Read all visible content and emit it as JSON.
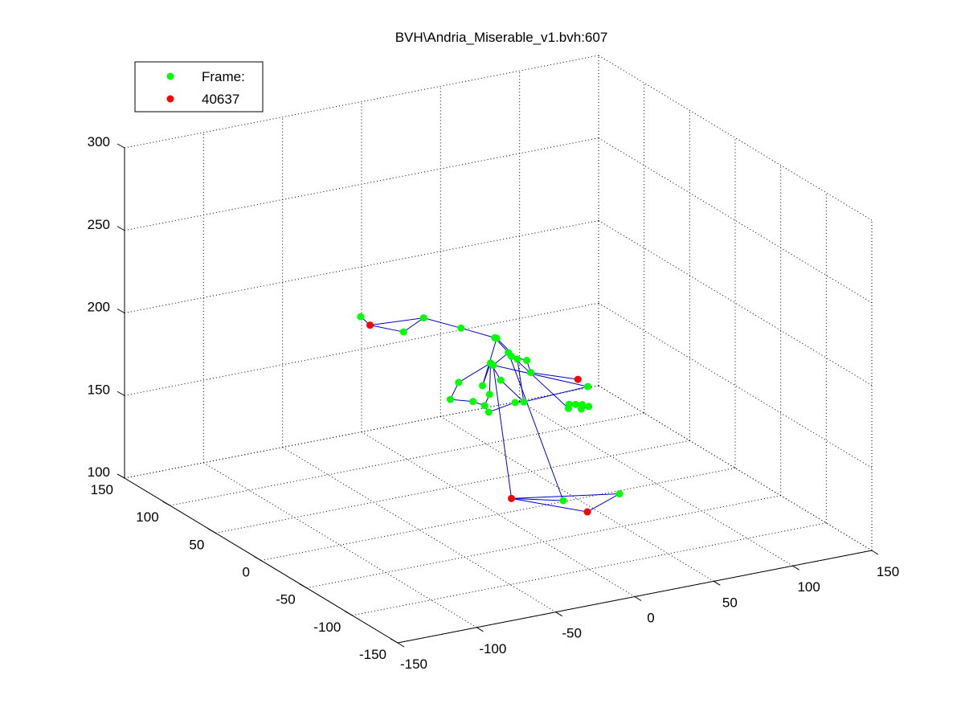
{
  "figure": {
    "background": "#ffffff",
    "title": "BVH\\Andria_Miserable_v1.bvh:607"
  },
  "chart_data": {
    "type": "scatter",
    "projection": "3d",
    "title": "BVH\\Andria_Miserable_v1.bvh:607",
    "xlabel": "",
    "ylabel": "",
    "zlabel": "",
    "grid": true,
    "xlim": [
      -150,
      150
    ],
    "ylim": [
      -150,
      150
    ],
    "zlim": [
      100,
      300
    ],
    "x_ticks": [
      "-150",
      "-100",
      "-50",
      "0",
      "50",
      "100",
      "150"
    ],
    "y_ticks": [
      "-150",
      "-100",
      "-50",
      "0",
      "50",
      "100",
      "150"
    ],
    "z_ticks": [
      "100",
      "150",
      "200",
      "250",
      "300"
    ],
    "legend": {
      "position": "top-left",
      "entries": [
        {
          "label": "Frame:",
          "color": "#00ff00"
        },
        {
          "label": "40637",
          "color": "#ff0000"
        }
      ]
    },
    "colors": {
      "joint": "#00ff00",
      "end_site": "#ff0000",
      "bone": "#0000cc"
    },
    "series": [
      {
        "name": "Frame:",
        "marker": "#00ff00",
        "points": [
          [
            11,
            -9,
            169
          ],
          [
            9,
            -3,
            167
          ],
          [
            -6,
            0,
            163
          ],
          [
            -8,
            1,
            167
          ],
          [
            -2,
            6,
            171
          ],
          [
            5,
            17,
            185
          ],
          [
            12,
            18,
            173
          ],
          [
            -6,
            33,
            170
          ],
          [
            -13,
            30,
            162
          ],
          [
            -9,
            12,
            166
          ],
          [
            12,
            38,
            163
          ],
          [
            25,
            45,
            187
          ],
          [
            30,
            31,
            178
          ],
          [
            36,
            48,
            173
          ],
          [
            44,
            45,
            170
          ],
          [
            35,
            25,
            171
          ],
          [
            59,
            4,
            165
          ],
          [
            32,
            61,
            164
          ],
          [
            48,
            72,
            165
          ],
          [
            48,
            87,
            169
          ],
          [
            33,
            98,
            174
          ],
          [
            18,
            113,
            178
          ],
          [
            -8,
            90,
            182
          ],
          [
            -23,
            111,
            187
          ],
          [
            56,
            20,
            147
          ],
          [
            57,
            21,
            149
          ],
          [
            60,
            19,
            149
          ],
          [
            63,
            17,
            149
          ],
          [
            66,
            15,
            148
          ],
          [
            63,
            18,
            146
          ],
          [
            21,
            -35,
            116
          ],
          [
            52,
            -43,
            117
          ]
        ]
      },
      {
        "name": "40637",
        "marker": "#ff0000",
        "points": [
          [
            43,
            -13,
            178
          ],
          [
            -20,
            106,
            183
          ],
          [
            -6,
            -25,
            119
          ],
          [
            38,
            -32,
            105
          ]
        ]
      }
    ],
    "bones": [
      [
        [
          11,
          -9,
          169
        ],
        [
          9,
          -3,
          167
        ]
      ],
      [
        [
          9,
          -3,
          167
        ],
        [
          -6,
          0,
          163
        ]
      ],
      [
        [
          -6,
          0,
          163
        ],
        [
          -8,
          1,
          167
        ]
      ],
      [
        [
          -8,
          1,
          167
        ],
        [
          -2,
          6,
          171
        ]
      ],
      [
        [
          -2,
          6,
          171
        ],
        [
          5,
          17,
          185
        ]
      ],
      [
        [
          5,
          17,
          185
        ],
        [
          12,
          18,
          173
        ]
      ],
      [
        [
          12,
          18,
          173
        ],
        [
          11,
          -9,
          169
        ]
      ],
      [
        [
          5,
          17,
          185
        ],
        [
          -6,
          33,
          170
        ]
      ],
      [
        [
          -6,
          33,
          170
        ],
        [
          -13,
          30,
          162
        ]
      ],
      [
        [
          -13,
          30,
          162
        ],
        [
          -9,
          12,
          166
        ]
      ],
      [
        [
          -9,
          12,
          166
        ],
        [
          -8,
          1,
          167
        ]
      ],
      [
        [
          5,
          17,
          185
        ],
        [
          12,
          38,
          163
        ]
      ],
      [
        [
          12,
          38,
          163
        ],
        [
          25,
          45,
          187
        ]
      ],
      [
        [
          25,
          45,
          187
        ],
        [
          30,
          31,
          178
        ]
      ],
      [
        [
          30,
          31,
          178
        ],
        [
          36,
          48,
          173
        ]
      ],
      [
        [
          36,
          48,
          173
        ],
        [
          44,
          45,
          170
        ]
      ],
      [
        [
          44,
          45,
          170
        ],
        [
          35,
          25,
          171
        ]
      ],
      [
        [
          35,
          25,
          171
        ],
        [
          43,
          -13,
          178
        ]
      ],
      [
        [
          30,
          31,
          178
        ],
        [
          11,
          -9,
          169
        ]
      ],
      [
        [
          11,
          -9,
          169
        ],
        [
          59,
          4,
          165
        ]
      ],
      [
        [
          59,
          4,
          165
        ],
        [
          32,
          61,
          164
        ]
      ],
      [
        [
          32,
          61,
          164
        ],
        [
          48,
          72,
          165
        ]
      ],
      [
        [
          48,
          72,
          165
        ],
        [
          48,
          87,
          169
        ]
      ],
      [
        [
          48,
          87,
          169
        ],
        [
          33,
          98,
          174
        ]
      ],
      [
        [
          33,
          98,
          174
        ],
        [
          18,
          113,
          178
        ]
      ],
      [
        [
          18,
          113,
          178
        ],
        [
          -20,
          106,
          183
        ]
      ],
      [
        [
          -20,
          106,
          183
        ],
        [
          -23,
          111,
          187
        ]
      ],
      [
        [
          -20,
          106,
          183
        ],
        [
          -8,
          90,
          182
        ]
      ],
      [
        [
          -8,
          90,
          182
        ],
        [
          18,
          113,
          178
        ]
      ],
      [
        [
          48,
          72,
          165
        ],
        [
          56,
          20,
          147
        ]
      ],
      [
        [
          56,
          20,
          147
        ],
        [
          57,
          21,
          149
        ]
      ],
      [
        [
          57,
          21,
          149
        ],
        [
          60,
          19,
          149
        ]
      ],
      [
        [
          60,
          19,
          149
        ],
        [
          63,
          17,
          149
        ]
      ],
      [
        [
          63,
          17,
          149
        ],
        [
          66,
          15,
          148
        ]
      ],
      [
        [
          66,
          15,
          148
        ],
        [
          63,
          18,
          146
        ]
      ],
      [
        [
          48,
          72,
          165
        ],
        [
          21,
          -35,
          116
        ]
      ],
      [
        [
          21,
          -35,
          116
        ],
        [
          -6,
          -25,
          119
        ]
      ],
      [
        [
          -6,
          -25,
          119
        ],
        [
          32,
          61,
          164
        ]
      ],
      [
        [
          -6,
          -25,
          119
        ],
        [
          38,
          -32,
          105
        ]
      ],
      [
        [
          38,
          -32,
          105
        ],
        [
          52,
          -43,
          117
        ]
      ],
      [
        [
          52,
          -43,
          117
        ],
        [
          -6,
          -25,
          119
        ]
      ]
    ]
  }
}
